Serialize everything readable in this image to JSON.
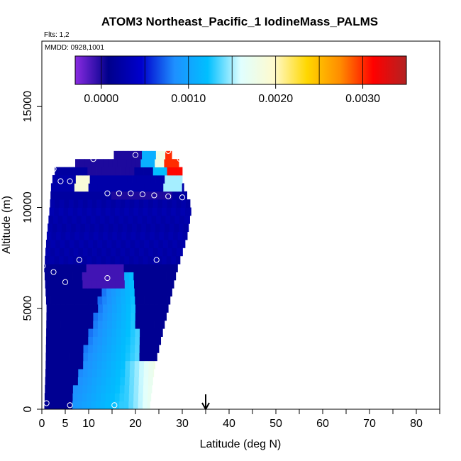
{
  "chart_data": {
    "type": "heatmap",
    "title": "ATOM3 Northeast_Pacific_1 IodineMass_PALMS",
    "flights_label": "Flts: 1,2",
    "dates_label": "MMDD: 0928,1001",
    "xlabel": "Latitude (deg N)",
    "ylabel": "Altitude (m)",
    "xlim": [
      0,
      85
    ],
    "ylim": [
      0,
      17500
    ],
    "x_ticks": [
      0,
      5,
      10,
      20,
      30,
      40,
      50,
      60,
      70,
      80
    ],
    "x_minor_ticks": [
      15,
      25,
      35,
      45,
      55,
      65,
      75,
      85
    ],
    "y_ticks": [
      0,
      5000,
      10000,
      15000
    ],
    "colorbar": {
      "range": [
        -0.0003,
        0.0035
      ],
      "ticks": [
        "0.0000",
        "0.0010",
        "0.0020",
        "0.0030"
      ],
      "tick_values": [
        0.0,
        0.001,
        0.002,
        0.003
      ],
      "division_values": [
        0.0005,
        0.0015,
        0.0025
      ],
      "stops": [
        "#8a2be2",
        "#00008b",
        "#0000cd",
        "#1e90ff",
        "#00bfff",
        "#e0ffff",
        "#fffacd",
        "#ffd700",
        "#ff8c00",
        "#ff0000",
        "#b22222"
      ]
    },
    "curtain_edges": [
      {
        "altitude": 0,
        "lat_min": 0.5,
        "lat_max": 23
      },
      {
        "altitude": 2000,
        "lat_min": 0.8,
        "lat_max": 24
      },
      {
        "altitude": 5000,
        "lat_min": 1.0,
        "lat_max": 27
      },
      {
        "altitude": 7000,
        "lat_min": 0.5,
        "lat_max": 29
      },
      {
        "altitude": 8500,
        "lat_min": 1.0,
        "lat_max": 31
      },
      {
        "altitude": 10000,
        "lat_min": 1.7,
        "lat_max": 32
      },
      {
        "altitude": 11200,
        "lat_min": 2.0,
        "lat_max": 30
      },
      {
        "altitude": 12000,
        "lat_min": 3.0,
        "lat_max": 30
      },
      {
        "altitude": 12800,
        "lat_min": 19.5,
        "lat_max": 27
      }
    ],
    "observations": [
      {
        "lat": 0.2,
        "alt": 7100
      },
      {
        "lat": 2.5,
        "alt": 6800
      },
      {
        "lat": 5.0,
        "alt": 6300
      },
      {
        "lat": 8.0,
        "alt": 7400
      },
      {
        "lat": 14.0,
        "alt": 6500
      },
      {
        "lat": 24.5,
        "alt": 7400
      },
      {
        "lat": 1.0,
        "alt": 300
      },
      {
        "lat": 6.0,
        "alt": 200
      },
      {
        "lat": 15.5,
        "alt": 200
      },
      {
        "lat": 2.5,
        "alt": 11900
      },
      {
        "lat": 4.0,
        "alt": 11300
      },
      {
        "lat": 6.0,
        "alt": 11300
      },
      {
        "lat": 11.0,
        "alt": 12400
      },
      {
        "lat": 20.0,
        "alt": 12600
      },
      {
        "lat": 27.0,
        "alt": 12800
      },
      {
        "lat": 29.5,
        "alt": 12400
      },
      {
        "lat": 14.0,
        "alt": 10700
      },
      {
        "lat": 16.5,
        "alt": 10700
      },
      {
        "lat": 19.0,
        "alt": 10700
      },
      {
        "lat": 21.5,
        "alt": 10650
      },
      {
        "lat": 24.0,
        "alt": 10600
      },
      {
        "lat": 27.0,
        "alt": 10550
      },
      {
        "lat": 30.0,
        "alt": 10500
      }
    ],
    "marker_latitude": 35
  }
}
